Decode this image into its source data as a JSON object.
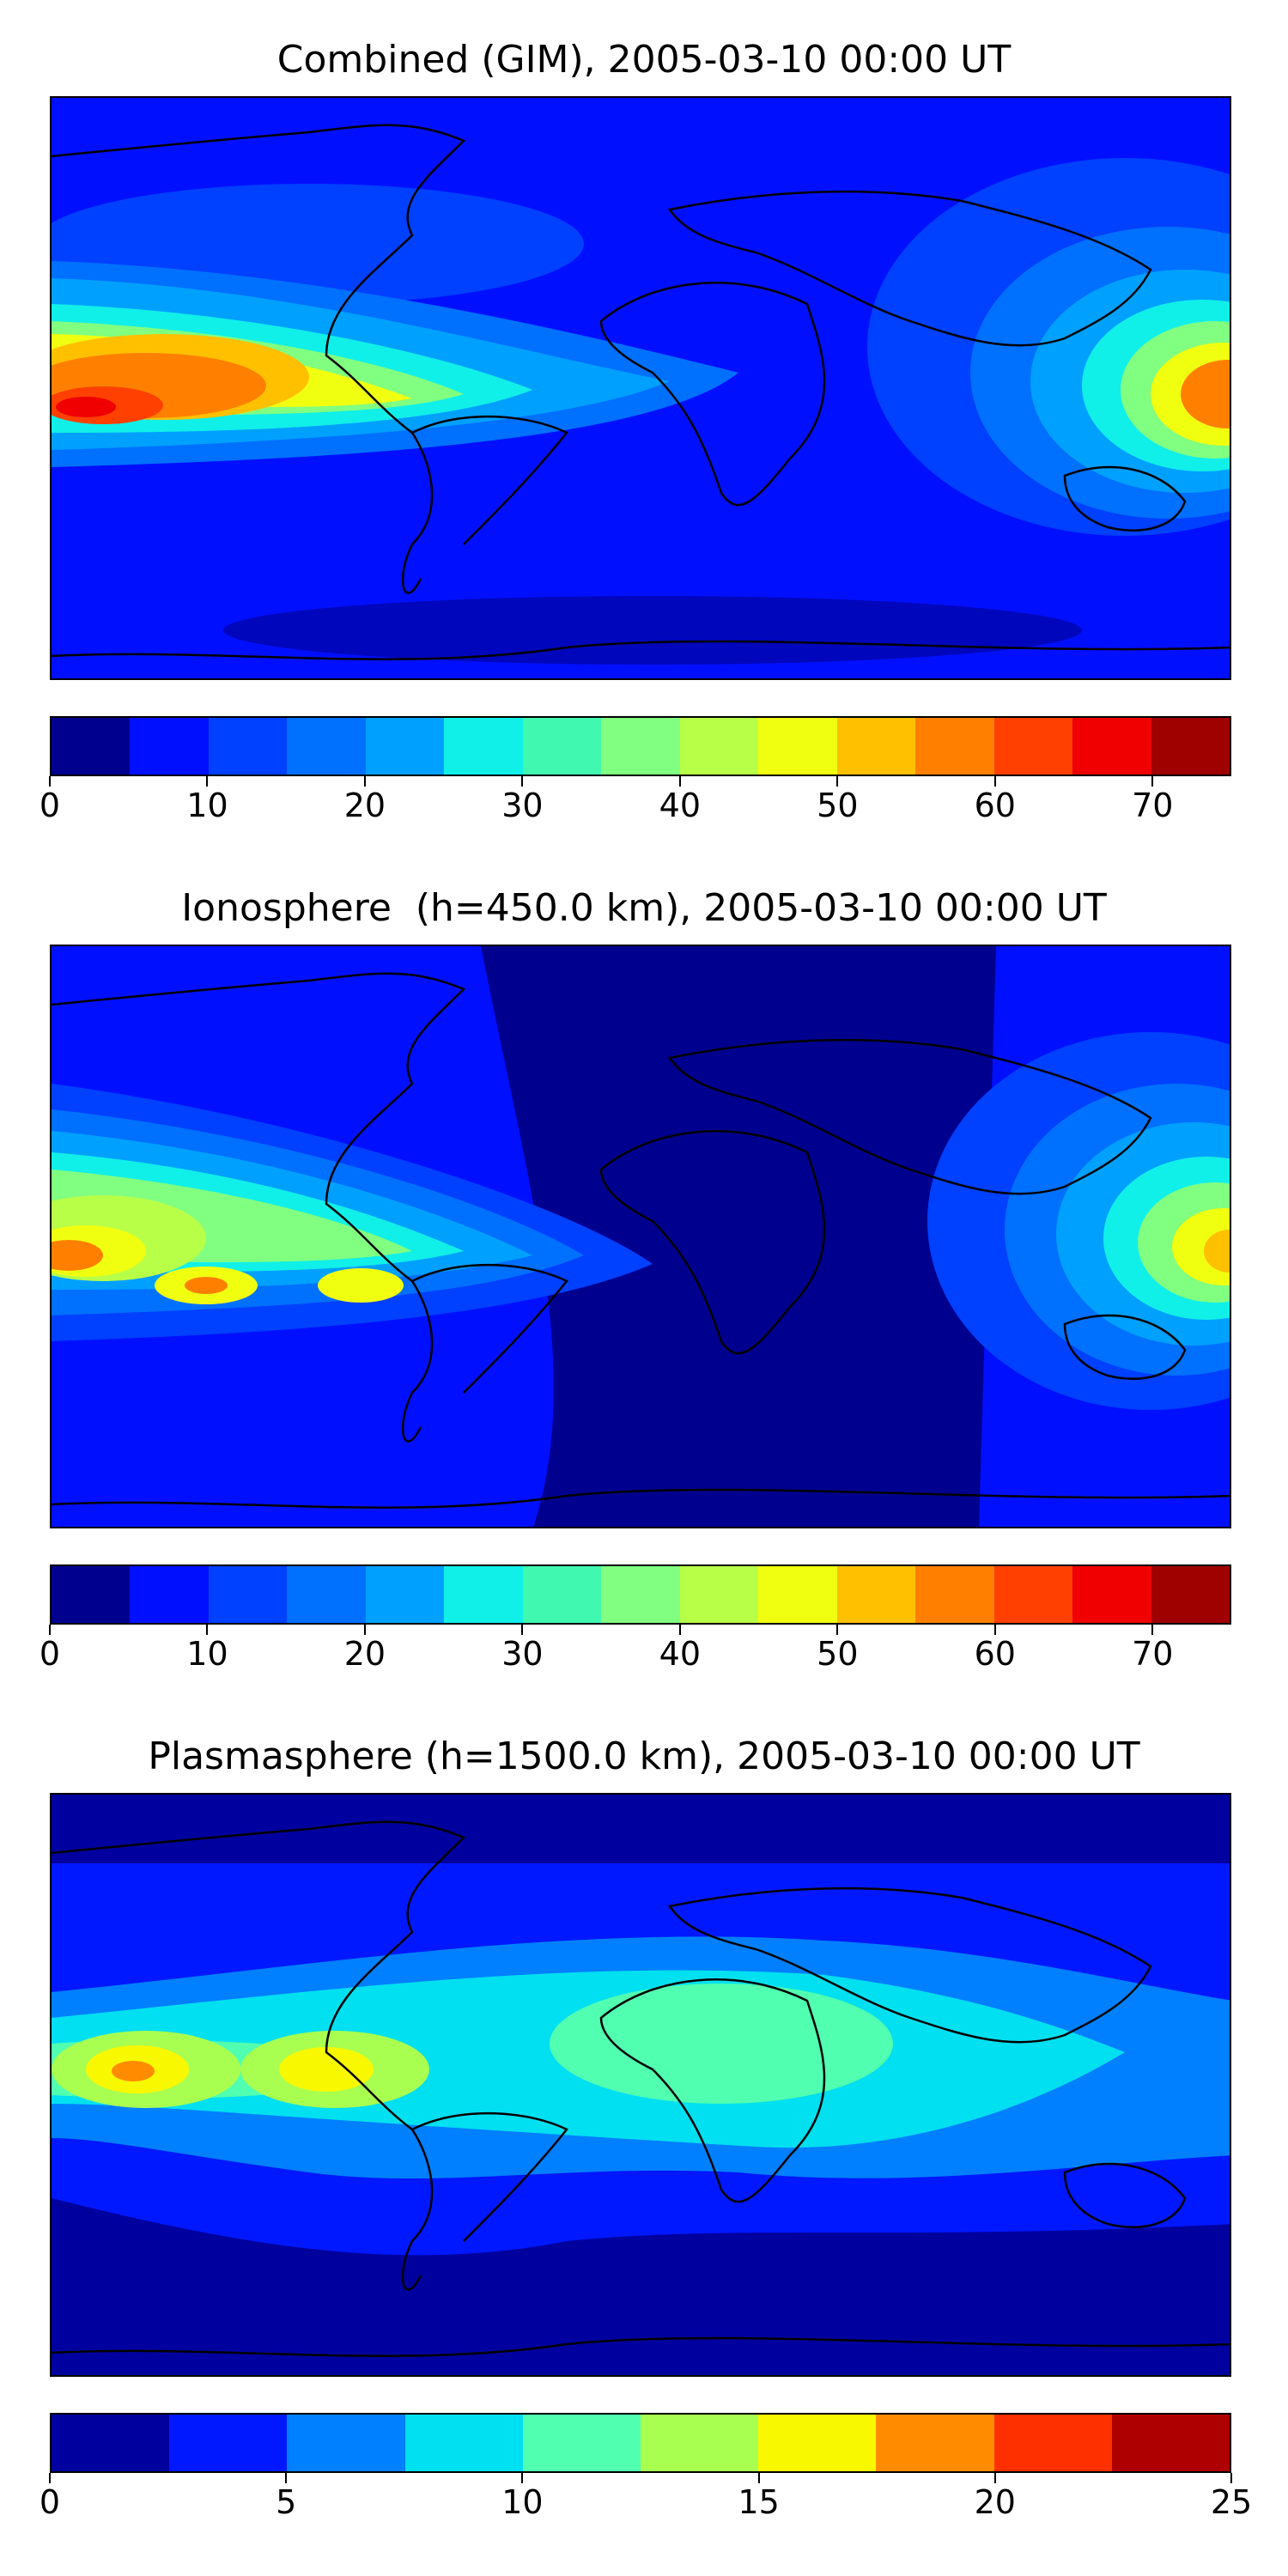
{
  "panels": [
    {
      "title": "Combined (GIM), 2005-03-10 00:00 UT",
      "colorbar": {
        "min": 0,
        "max": 75,
        "step": 5,
        "ticks": [
          "0",
          "10",
          "20",
          "30",
          "40",
          "50",
          "60",
          "70"
        ],
        "tick_values": [
          0,
          10,
          20,
          30,
          40,
          50,
          60,
          70
        ],
        "colors": [
          "#00008f",
          "#0010ff",
          "#0040ff",
          "#0070ff",
          "#00a0ff",
          "#10f0e8",
          "#40f8b0",
          "#80ff80",
          "#b8ff48",
          "#f0ff10",
          "#ffc000",
          "#ff8000",
          "#ff4000",
          "#f00000",
          "#9f0000"
        ]
      }
    },
    {
      "title": "Ionosphere  (h=450.0 km), 2005-03-10 00:00 UT",
      "colorbar": {
        "min": 0,
        "max": 75,
        "step": 5,
        "ticks": [
          "0",
          "10",
          "20",
          "30",
          "40",
          "50",
          "60",
          "70"
        ],
        "tick_values": [
          0,
          10,
          20,
          30,
          40,
          50,
          60,
          70
        ],
        "colors": [
          "#00008f",
          "#0010ff",
          "#0040ff",
          "#0070ff",
          "#00a0ff",
          "#10f0e8",
          "#40f8b0",
          "#80ff80",
          "#b8ff48",
          "#f0ff10",
          "#ffc000",
          "#ff8000",
          "#ff4000",
          "#f00000",
          "#9f0000"
        ]
      }
    },
    {
      "title": "Plasmasphere (h=1500.0 km), 2005-03-10 00:00 UT",
      "colorbar": {
        "min": 0,
        "max": 25,
        "step": 2.5,
        "ticks": [
          "0",
          "5",
          "10",
          "15",
          "20",
          "25"
        ],
        "tick_values": [
          0,
          5,
          10,
          15,
          20,
          25
        ],
        "colors": [
          "#00009f",
          "#0018ff",
          "#0080ff",
          "#00e0f0",
          "#50ffb0",
          "#a8ff50",
          "#f8f800",
          "#ff8c00",
          "#ff3000",
          "#af0000"
        ]
      }
    }
  ]
}
